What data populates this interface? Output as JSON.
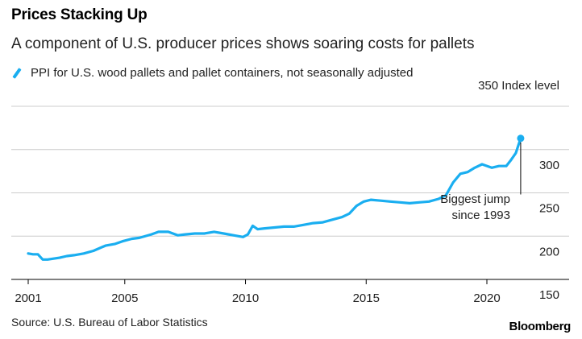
{
  "title": "Prices Stacking Up",
  "subtitle": "A component of U.S. producer prices shows soaring costs for pallets",
  "legend_label": "PPI for U.S. wood pallets and pallet containers, not seasonally adjusted",
  "source": "Source: U.S. Bureau of Labor Statistics",
  "logo": "Bloomberg",
  "annotation": {
    "line1": "Biggest jump",
    "line2": "since 1993"
  },
  "colors": {
    "series": "#1aaef0",
    "grid": "#cccccc",
    "axis": "#000000",
    "text": "#222222"
  },
  "chart_data": {
    "type": "line",
    "title": "Prices Stacking Up",
    "subtitle": "A component of U.S. producer prices shows soaring costs for pallets",
    "ylabel": "Index level",
    "ylim": [
      150,
      350
    ],
    "xlim": [
      2000.8,
      2022.3
    ],
    "y_ticks": [
      350,
      300,
      250,
      200,
      150
    ],
    "y_tick_labels": [
      "350 Index level",
      "300",
      "250",
      "200",
      "150"
    ],
    "x_ticks": [
      2001,
      2005,
      2010,
      2015,
      2020
    ],
    "x_tick_labels": [
      "2001",
      "2005",
      "2010",
      "2015",
      "2020"
    ],
    "grid": "horizontal",
    "legend": "top-left",
    "series": [
      {
        "name": "PPI for U.S. wood pallets and pallet containers, not seasonally adjusted",
        "x": [
          2001.0,
          2001.2,
          2001.4,
          2001.6,
          2001.8,
          2002.3,
          2002.6,
          2002.9,
          2003.3,
          2003.7,
          2004.2,
          2004.6,
          2004.9,
          2005.3,
          2005.6,
          2006.1,
          2006.4,
          2006.8,
          2007.2,
          2007.5,
          2007.9,
          2008.3,
          2008.7,
          2009.1,
          2009.5,
          2009.9,
          2010.1,
          2010.3,
          2010.5,
          2010.8,
          2011.2,
          2011.6,
          2012.0,
          2012.4,
          2012.8,
          2013.2,
          2013.6,
          2014.0,
          2014.3,
          2014.6,
          2014.9,
          2015.2,
          2015.6,
          2016.0,
          2016.4,
          2016.8,
          2017.2,
          2017.6,
          2018.0,
          2018.3,
          2018.6,
          2018.9,
          2019.2,
          2019.5,
          2019.8,
          2020.2,
          2020.5,
          2020.8,
          2021.0,
          2021.2,
          2021.4
        ],
        "values": [
          180,
          179,
          179,
          173,
          173,
          175,
          177,
          178,
          180,
          183,
          189,
          191,
          194,
          197,
          198,
          202,
          205,
          205,
          201,
          202,
          203,
          203,
          205,
          203,
          201,
          199,
          202,
          212,
          208,
          209,
          210,
          211,
          211,
          213,
          215,
          216,
          219,
          222,
          226,
          235,
          240,
          242,
          241,
          240,
          239,
          238,
          239,
          240,
          243,
          247,
          262,
          272,
          274,
          279,
          283,
          279,
          281,
          281,
          288,
          296,
          313
        ]
      }
    ]
  }
}
